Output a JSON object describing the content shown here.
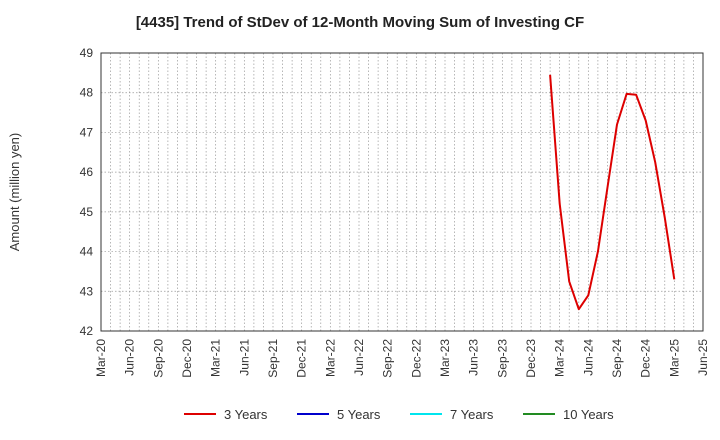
{
  "chart_data": {
    "type": "line",
    "title": "[4435]  Trend of StDev of 12-Month Moving Sum of Investing CF",
    "xlabel": "",
    "ylabel": "Amount (million yen)",
    "ylim": [
      42,
      49
    ],
    "yticks": [
      42,
      43,
      44,
      45,
      46,
      47,
      48,
      49
    ],
    "x_range": [
      "2020-03",
      "2025-06"
    ],
    "x_ticks": [
      "Mar-20",
      "Jun-20",
      "Sep-20",
      "Dec-20",
      "Mar-21",
      "Jun-21",
      "Sep-21",
      "Dec-21",
      "Mar-22",
      "Jun-22",
      "Sep-22",
      "Dec-22",
      "Mar-23",
      "Jun-23",
      "Sep-23",
      "Dec-23",
      "Mar-24",
      "Jun-24",
      "Sep-24",
      "Dec-24",
      "Mar-25",
      "Jun-25"
    ],
    "grid": true,
    "legend_position": "bottom",
    "series": [
      {
        "name": "3 Years",
        "color": "#dd0000",
        "points": [
          [
            "2024-02",
            48.45
          ],
          [
            "2024-03",
            45.2
          ],
          [
            "2024-04",
            43.25
          ],
          [
            "2024-05",
            42.55
          ],
          [
            "2024-06",
            42.9
          ],
          [
            "2024-07",
            44.0
          ],
          [
            "2024-08",
            45.6
          ],
          [
            "2024-09",
            47.2
          ],
          [
            "2024-10",
            47.97
          ],
          [
            "2024-11",
            47.95
          ],
          [
            "2024-12",
            47.3
          ],
          [
            "2025-01",
            46.25
          ],
          [
            "2025-02",
            44.85
          ],
          [
            "2025-03",
            43.3
          ]
        ]
      },
      {
        "name": "5 Years",
        "color": "#0000cc",
        "points": []
      },
      {
        "name": "7 Years",
        "color": "#00e5ee",
        "points": []
      },
      {
        "name": "10 Years",
        "color": "#228b22",
        "points": []
      }
    ]
  }
}
